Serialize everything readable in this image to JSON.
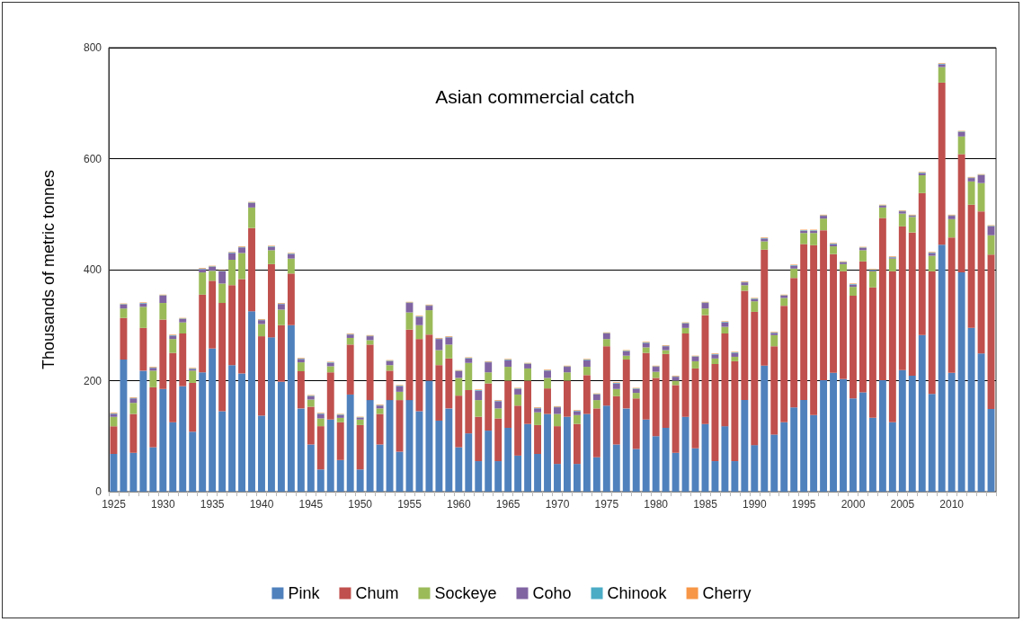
{
  "chart_data": {
    "type": "bar",
    "title": "Asian commercial catch",
    "ylabel": "Thousands of metric tonnes",
    "stacked": true,
    "grid": "y",
    "legend": "bottom",
    "categories": [
      "1925",
      null,
      null,
      null,
      null,
      "1930",
      null,
      null,
      null,
      null,
      "1935",
      null,
      null,
      null,
      null,
      "1940",
      null,
      null,
      null,
      null,
      "1945",
      null,
      null,
      null,
      null,
      "1950",
      null,
      null,
      null,
      null,
      "1955",
      null,
      null,
      null,
      null,
      "1960",
      null,
      null,
      null,
      null,
      "1965",
      null,
      null,
      null,
      null,
      "1970",
      null,
      null,
      null,
      null,
      "1975",
      null,
      null,
      null,
      null,
      "1980",
      null,
      null,
      null,
      null,
      "1985",
      null,
      null,
      null,
      null,
      "1990",
      null,
      null,
      null,
      null,
      "1995",
      null,
      null,
      null,
      null,
      "2000",
      null,
      null,
      null,
      null,
      "2005",
      null,
      null,
      null,
      null,
      "2010",
      null,
      null,
      null,
      null
    ],
    "ylim": [
      0,
      800
    ],
    "yticks": [
      0,
      200,
      400,
      600,
      800
    ],
    "series": [
      {
        "name": "Pink",
        "color": "#4f81bd",
        "values": [
          68,
          238,
          70,
          218,
          80,
          185,
          125,
          190,
          108,
          215,
          258,
          145,
          228,
          213,
          325,
          137,
          278,
          198,
          300,
          150,
          85,
          40,
          130,
          57,
          175,
          40,
          165,
          85,
          165,
          72,
          165,
          145,
          200,
          128,
          150,
          80,
          105,
          55,
          110,
          55,
          115,
          65,
          122,
          68,
          140,
          50,
          135,
          50,
          140,
          62,
          155,
          85,
          150,
          77,
          130,
          100,
          115,
          70,
          135,
          78,
          122,
          55,
          118,
          55,
          165,
          84,
          227,
          103,
          125,
          152,
          165,
          138,
          201,
          214,
          203,
          168,
          179,
          133,
          201,
          125,
          219,
          209,
          282,
          176,
          445,
          214,
          395,
          295,
          249,
          149
        ]
      },
      {
        "name": "Chum",
        "color": "#c0504d",
        "values": [
          50,
          75,
          70,
          77,
          108,
          125,
          125,
          95,
          88,
          140,
          122,
          195,
          144,
          170,
          150,
          143,
          132,
          102,
          93,
          67,
          68,
          78,
          85,
          68,
          90,
          80,
          100,
          55,
          53,
          93,
          127,
          130,
          83,
          100,
          90,
          93,
          78,
          80,
          85,
          77,
          85,
          90,
          78,
          52,
          46,
          68,
          65,
          72,
          70,
          88,
          107,
          87,
          88,
          91,
          120,
          105,
          133,
          122,
          150,
          144,
          196,
          175,
          167,
          180,
          197,
          240,
          209,
          159,
          210,
          233,
          281,
          306,
          270,
          214,
          194,
          185,
          236,
          235,
          292,
          272,
          259,
          258,
          256,
          221,
          292,
          244,
          213,
          222,
          256,
          278
        ]
      },
      {
        "name": "Sockeye",
        "color": "#9bbb59",
        "values": [
          17,
          17,
          20,
          38,
          30,
          30,
          25,
          20,
          22,
          40,
          18,
          35,
          46,
          47,
          37,
          22,
          25,
          28,
          27,
          16,
          13,
          14,
          11,
          8,
          12,
          10,
          8,
          10,
          10,
          15,
          31,
          25,
          44,
          27,
          25,
          32,
          49,
          30,
          20,
          18,
          25,
          20,
          22,
          23,
          19,
          22,
          15,
          16,
          15,
          15,
          13,
          13,
          7,
          10,
          10,
          11,
          7,
          8,
          10,
          13,
          12,
          10,
          12,
          8,
          10,
          19,
          15,
          20,
          14,
          17,
          20,
          22,
          21,
          14,
          13,
          16,
          20,
          29,
          19,
          23,
          23,
          28,
          32,
          28,
          28,
          33,
          32,
          42,
          51,
          35
        ]
      },
      {
        "name": "Coho",
        "color": "#8064a2",
        "values": [
          5,
          7,
          8,
          6,
          5,
          13,
          6,
          6,
          3,
          6,
          7,
          22,
          12,
          10,
          8,
          7,
          6,
          10,
          8,
          6,
          6,
          8,
          6,
          5,
          6,
          3,
          7,
          5,
          7,
          10,
          17,
          15,
          8,
          20,
          13,
          12,
          8,
          17,
          18,
          13,
          12,
          10,
          8,
          7,
          13,
          12,
          10,
          7,
          12,
          10,
          10,
          10,
          8,
          7,
          8,
          9,
          7,
          7,
          8,
          8,
          10,
          7,
          8,
          7,
          5,
          4,
          5,
          4,
          4,
          5,
          4,
          4,
          5,
          4,
          3,
          4,
          4,
          2,
          3,
          2,
          4,
          2,
          4,
          5,
          5,
          6,
          8,
          6,
          14,
          16
        ]
      },
      {
        "name": "Chinook",
        "color": "#4bacc6",
        "values": [
          1,
          1,
          1,
          1,
          1,
          1,
          1,
          1,
          1,
          1,
          1,
          1,
          1,
          1,
          1,
          1,
          1,
          1,
          1,
          1,
          1,
          1,
          1,
          1,
          1,
          1,
          1,
          1,
          1,
          1,
          1,
          1,
          1,
          1,
          1,
          1,
          1,
          1,
          1,
          1,
          1,
          1,
          1,
          1,
          1,
          1,
          1,
          1,
          1,
          1,
          1,
          1,
          1,
          1,
          1,
          1,
          1,
          1,
          1,
          1,
          1,
          1,
          1,
          1,
          1,
          1,
          1,
          1,
          1,
          1,
          1,
          1,
          1,
          1,
          1,
          1,
          1,
          1,
          1,
          1,
          1,
          1,
          1,
          1,
          1,
          1,
          1,
          1,
          1,
          1
        ]
      },
      {
        "name": "Cherry",
        "color": "#f79646",
        "values": [
          1,
          1,
          1,
          1,
          1,
          1,
          1,
          1,
          1,
          1,
          1,
          1,
          1,
          1,
          1,
          1,
          1,
          1,
          1,
          1,
          1,
          1,
          1,
          1,
          1,
          1,
          1,
          1,
          1,
          1,
          1,
          1,
          1,
          1,
          1,
          1,
          1,
          1,
          1,
          1,
          1,
          1,
          1,
          1,
          1,
          1,
          1,
          1,
          1,
          1,
          1,
          1,
          1,
          1,
          1,
          1,
          1,
          1,
          1,
          1,
          1,
          1,
          1,
          1,
          1,
          1,
          1,
          1,
          1,
          1,
          1,
          1,
          1,
          1,
          1,
          1,
          1,
          1,
          1,
          1,
          1,
          1,
          1,
          1,
          1,
          1,
          1,
          1,
          1,
          1
        ]
      }
    ]
  }
}
